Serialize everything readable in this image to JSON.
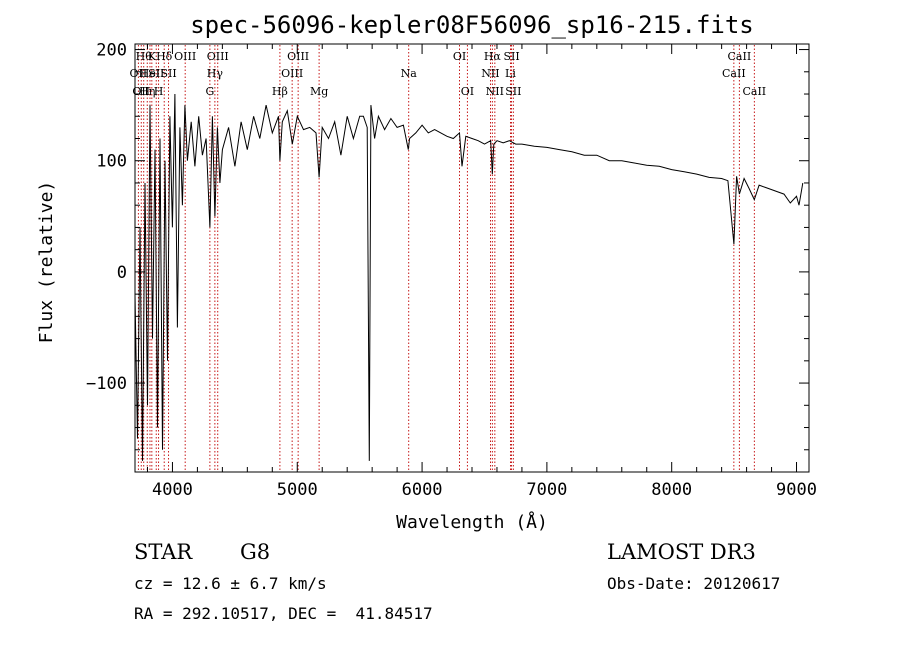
{
  "chart_data": {
    "type": "line",
    "title": "spec-56096-kepler08F56096_sp16-215.fits",
    "xlabel": "Wavelength (Å)",
    "ylabel": "Flux (relative)",
    "xlim": [
      3700,
      9100
    ],
    "ylim": [
      -180,
      205
    ],
    "xticks": [
      4000,
      5000,
      6000,
      7000,
      8000,
      9000
    ],
    "yticks": [
      200,
      100,
      0,
      -100
    ],
    "xtick_labels": [
      "4000",
      "5000",
      "6000",
      "7000",
      "8000",
      "9000"
    ],
    "ytick_labels": [
      "200",
      "100",
      "0",
      "−100"
    ],
    "series": [
      {
        "name": "flux",
        "x": [
          3700,
          3720,
          3740,
          3760,
          3780,
          3800,
          3820,
          3840,
          3860,
          3880,
          3900,
          3920,
          3940,
          3960,
          3980,
          4000,
          4020,
          4040,
          4060,
          4080,
          4100,
          4120,
          4150,
          4180,
          4210,
          4240,
          4270,
          4300,
          4320,
          4340,
          4360,
          4380,
          4400,
          4450,
          4500,
          4550,
          4600,
          4650,
          4700,
          4750,
          4800,
          4850,
          4861,
          4880,
          4920,
          4960,
          5000,
          5050,
          5100,
          5150,
          5175,
          5200,
          5250,
          5300,
          5350,
          5400,
          5450,
          5500,
          5530,
          5560,
          5577,
          5590,
          5620,
          5650,
          5700,
          5750,
          5800,
          5850,
          5890,
          5900,
          5950,
          6000,
          6050,
          6100,
          6150,
          6200,
          6250,
          6300,
          6320,
          6350,
          6400,
          6450,
          6500,
          6550,
          6563,
          6575,
          6600,
          6650,
          6700,
          6750,
          6800,
          6900,
          7000,
          7100,
          7200,
          7300,
          7400,
          7500,
          7600,
          7700,
          7800,
          7900,
          8000,
          8100,
          8200,
          8300,
          8400,
          8450,
          8498,
          8520,
          8542,
          8580,
          8620,
          8662,
          8700,
          8750,
          8800,
          8850,
          8900,
          8950,
          9000,
          9020,
          9050
        ],
        "values": [
          -20,
          -150,
          40,
          -170,
          80,
          -120,
          150,
          -60,
          110,
          -140,
          120,
          -160,
          100,
          -80,
          140,
          40,
          160,
          -50,
          130,
          60,
          150,
          100,
          135,
          95,
          140,
          105,
          120,
          40,
          140,
          50,
          130,
          80,
          110,
          130,
          95,
          135,
          110,
          140,
          120,
          150,
          125,
          140,
          100,
          135,
          145,
          115,
          140,
          128,
          130,
          125,
          85,
          130,
          120,
          135,
          105,
          140,
          120,
          140,
          140,
          130,
          -170,
          150,
          120,
          140,
          128,
          138,
          130,
          132,
          110,
          120,
          125,
          132,
          125,
          128,
          125,
          122,
          120,
          125,
          95,
          122,
          120,
          118,
          115,
          118,
          88,
          115,
          118,
          116,
          118,
          115,
          115,
          113,
          112,
          110,
          108,
          105,
          105,
          100,
          100,
          98,
          96,
          95,
          92,
          90,
          88,
          85,
          84,
          82,
          25,
          86,
          70,
          84,
          75,
          65,
          78,
          76,
          74,
          72,
          70,
          62,
          68,
          60,
          80
        ]
      }
    ],
    "lines": [
      {
        "wl": 3727,
        "row": 1,
        "label": "OII"
      },
      {
        "wl": 3750,
        "row": 2,
        "label": "OII"
      },
      {
        "wl": 3770,
        "row": 0,
        "label": "Hθ"
      },
      {
        "wl": 3798,
        "row": 2,
        "label": "Hη"
      },
      {
        "wl": 3820,
        "row": 1,
        "label": "HeI"
      },
      {
        "wl": 3835,
        "row": 0,
        "label": "K"
      },
      {
        "wl": 3870,
        "row": 1,
        "label": "SII"
      },
      {
        "wl": 3889,
        "row": 2,
        "label": "H"
      },
      {
        "wl": 3934,
        "row": 0,
        "label": "Hδ"
      },
      {
        "wl": 3969,
        "row": 1,
        "label": "SII"
      },
      {
        "wl": 4102,
        "row": 0,
        "label": "OIII"
      },
      {
        "wl": 4300,
        "row": 2,
        "label": "G"
      },
      {
        "wl": 4340,
        "row": 1,
        "label": "Hγ"
      },
      {
        "wl": 4363,
        "row": 0,
        "label": "OIII"
      },
      {
        "wl": 4861,
        "row": 2,
        "label": "Hβ"
      },
      {
        "wl": 4959,
        "row": 1,
        "label": "OIII"
      },
      {
        "wl": 5007,
        "row": 0,
        "label": "OIII"
      },
      {
        "wl": 5175,
        "row": 2,
        "label": "Mg"
      },
      {
        "wl": 5893,
        "row": 1,
        "label": "Na"
      },
      {
        "wl": 6300,
        "row": 0,
        "label": "OI"
      },
      {
        "wl": 6363,
        "row": 2,
        "label": "OI"
      },
      {
        "wl": 6548,
        "row": 1,
        "label": "NII"
      },
      {
        "wl": 6563,
        "row": 0,
        "label": "Hα"
      },
      {
        "wl": 6583,
        "row": 2,
        "label": "NII"
      },
      {
        "wl": 6708,
        "row": 1,
        "label": "Li"
      },
      {
        "wl": 6717,
        "row": 0,
        "label": "SII"
      },
      {
        "wl": 6731,
        "row": 2,
        "label": "SII"
      },
      {
        "wl": 8498,
        "row": 1,
        "label": "CaII"
      },
      {
        "wl": 8542,
        "row": 0,
        "label": "CaII"
      },
      {
        "wl": 8662,
        "row": 2,
        "label": "CaII"
      }
    ],
    "line_color": "#c00000",
    "grid": false
  },
  "info": {
    "class": "STAR",
    "subclass": "G8",
    "survey": "LAMOST DR3",
    "cz": "cz = 12.6 ± 6.7 km/s",
    "obs_date": "Obs-Date: 20120617",
    "coords": "RA = 292.10517, DEC =  41.84517"
  }
}
